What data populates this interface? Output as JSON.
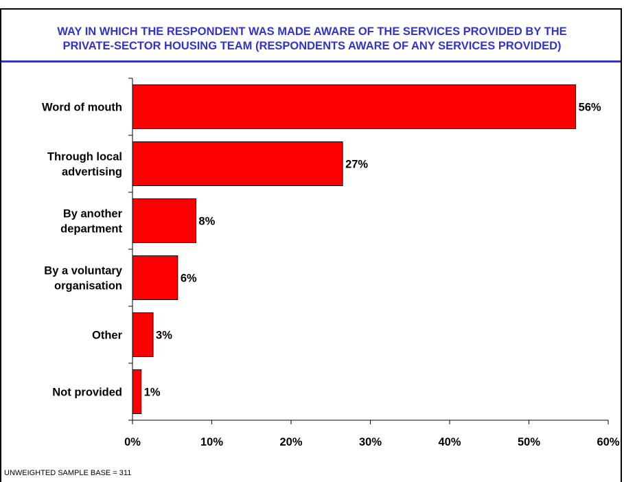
{
  "chart": {
    "title_line1": "WAY IN WHICH THE RESPONDENT WAS MADE AWARE OF THE SERVICES PROVIDED BY THE",
    "title_line2": "PRIVATE-SECTOR HOUSING TEAM (RESPONDENTS AWARE OF ANY SERVICES PROVIDED)",
    "footnote": "UNWEIGHTED SAMPLE BASE = 311"
  },
  "colors": {
    "bar_fill": "#ff0000",
    "bar_stroke": "#000000",
    "title": "#3333cc"
  },
  "chart_data": {
    "type": "bar",
    "orientation": "horizontal",
    "title": "WAY IN WHICH THE RESPONDENT WAS MADE AWARE OF THE SERVICES PROVIDED BY THE PRIVATE-SECTOR HOUSING TEAM (RESPONDENTS AWARE OF ANY SERVICES PROVIDED)",
    "categories": [
      [
        "Word of mouth"
      ],
      [
        "Through local",
        "advertising"
      ],
      [
        "By another",
        "department"
      ],
      [
        "By a voluntary",
        "organisation"
      ],
      [
        "Other"
      ],
      [
        "Not provided"
      ]
    ],
    "values": [
      56,
      27,
      8,
      6,
      3,
      1
    ],
    "bar_values_exact": [
      55.9,
      26.5,
      8.0,
      5.7,
      2.6,
      1.1
    ],
    "value_labels": [
      "56%",
      "27%",
      "8%",
      "6%",
      "3%",
      "1%"
    ],
    "xlim": [
      0,
      60
    ],
    "x_ticks": [
      0,
      10,
      20,
      30,
      40,
      50,
      60
    ],
    "x_tick_labels": [
      "0%",
      "10%",
      "20%",
      "30%",
      "40%",
      "50%",
      "60%"
    ],
    "xlabel": "",
    "ylabel": "",
    "grid": false,
    "legend": "none"
  }
}
